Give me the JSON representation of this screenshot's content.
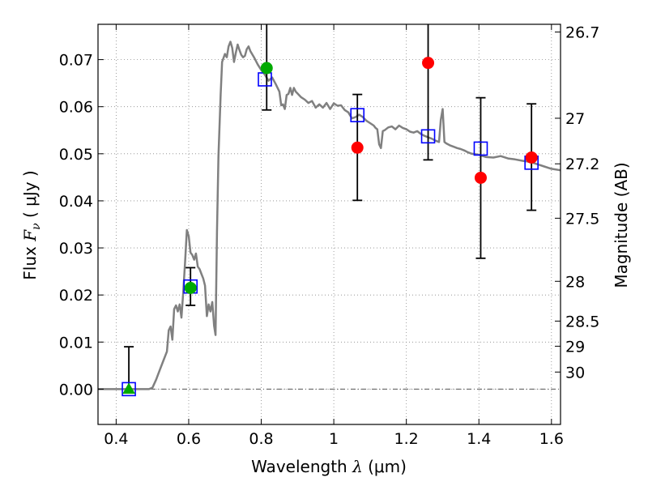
{
  "chart_data": {
    "type": "scatter",
    "xlabel": {
      "prefix": "Wavelength ",
      "symbol": "λ",
      "unit": " (μm)"
    },
    "ylabel": {
      "prefix": "Flux ",
      "symbol": "F",
      "subscript": "ν",
      "unit": " ( μJy )"
    },
    "y2label": "Magnitude (AB)",
    "xlim": [
      0.35,
      1.625
    ],
    "ylim": [
      -0.0075,
      0.0775
    ],
    "xticks": [
      0.4,
      0.6,
      0.8,
      1.0,
      1.2,
      1.4,
      1.6
    ],
    "xtick_labels": [
      "0.4",
      "0.6",
      "0.8",
      "1",
      "1.2",
      "1.4",
      "1.6"
    ],
    "yticks": [
      0.0,
      0.01,
      0.02,
      0.03,
      0.04,
      0.05,
      0.06,
      0.07
    ],
    "ytick_labels": [
      "0.00",
      "0.01",
      "0.02",
      "0.03",
      "0.04",
      "0.05",
      "0.06",
      "0.07"
    ],
    "mag_ticks": [
      26.7,
      27,
      27.2,
      27.5,
      28,
      28.5,
      29,
      30
    ],
    "mag_tick_labels": [
      "26.7",
      "27",
      "27.2",
      "27.5",
      "28",
      "28.5",
      "29",
      "30"
    ],
    "grid": true,
    "zero_line": true,
    "colors": {
      "sed_line": "#808080",
      "model_box": "#0000ff",
      "green_marker": "#00aa00",
      "red_marker": "#ff0000",
      "errorbar": "#000000",
      "grid": "#888888"
    },
    "sed_model": [
      [
        0.35,
        0.0
      ],
      [
        0.49,
        0.0
      ],
      [
        0.5,
        0.0003
      ],
      [
        0.51,
        0.002
      ],
      [
        0.52,
        0.004
      ],
      [
        0.53,
        0.006
      ],
      [
        0.54,
        0.008
      ],
      [
        0.545,
        0.0125
      ],
      [
        0.55,
        0.0133
      ],
      [
        0.555,
        0.0105
      ],
      [
        0.56,
        0.017
      ],
      [
        0.565,
        0.0178
      ],
      [
        0.57,
        0.0165
      ],
      [
        0.575,
        0.018
      ],
      [
        0.58,
        0.0152
      ],
      [
        0.585,
        0.0205
      ],
      [
        0.59,
        0.027
      ],
      [
        0.595,
        0.0338
      ],
      [
        0.6,
        0.0325
      ],
      [
        0.605,
        0.029
      ],
      [
        0.61,
        0.0285
      ],
      [
        0.615,
        0.0275
      ],
      [
        0.62,
        0.0288
      ],
      [
        0.625,
        0.026
      ],
      [
        0.63,
        0.0255
      ],
      [
        0.635,
        0.0245
      ],
      [
        0.64,
        0.0235
      ],
      [
        0.645,
        0.022
      ],
      [
        0.65,
        0.0155
      ],
      [
        0.655,
        0.018
      ],
      [
        0.66,
        0.0165
      ],
      [
        0.665,
        0.0185
      ],
      [
        0.67,
        0.0135
      ],
      [
        0.674,
        0.0115
      ],
      [
        0.678,
        0.0335
      ],
      [
        0.682,
        0.0495
      ],
      [
        0.688,
        0.0625
      ],
      [
        0.692,
        0.0695
      ],
      [
        0.7,
        0.0712
      ],
      [
        0.705,
        0.0705
      ],
      [
        0.71,
        0.0728
      ],
      [
        0.715,
        0.0738
      ],
      [
        0.72,
        0.0725
      ],
      [
        0.725,
        0.0695
      ],
      [
        0.73,
        0.0715
      ],
      [
        0.735,
        0.0732
      ],
      [
        0.74,
        0.072
      ],
      [
        0.745,
        0.071
      ],
      [
        0.75,
        0.0705
      ],
      [
        0.755,
        0.0708
      ],
      [
        0.76,
        0.0722
      ],
      [
        0.765,
        0.0728
      ],
      [
        0.77,
        0.0718
      ],
      [
        0.78,
        0.0705
      ],
      [
        0.79,
        0.069
      ],
      [
        0.8,
        0.0678
      ],
      [
        0.81,
        0.0668
      ],
      [
        0.82,
        0.0655
      ],
      [
        0.83,
        0.0662
      ],
      [
        0.84,
        0.0648
      ],
      [
        0.85,
        0.0632
      ],
      [
        0.855,
        0.0603
      ],
      [
        0.86,
        0.0605
      ],
      [
        0.865,
        0.0595
      ],
      [
        0.87,
        0.0625
      ],
      [
        0.875,
        0.0627
      ],
      [
        0.88,
        0.064
      ],
      [
        0.885,
        0.0625
      ],
      [
        0.89,
        0.064
      ],
      [
        0.895,
        0.0632
      ],
      [
        0.9,
        0.0628
      ],
      [
        0.91,
        0.062
      ],
      [
        0.92,
        0.0615
      ],
      [
        0.93,
        0.0608
      ],
      [
        0.94,
        0.0612
      ],
      [
        0.95,
        0.0598
      ],
      [
        0.96,
        0.0605
      ],
      [
        0.97,
        0.0598
      ],
      [
        0.98,
        0.0608
      ],
      [
        0.99,
        0.0595
      ],
      [
        1.0,
        0.0607
      ],
      [
        1.01,
        0.0602
      ],
      [
        1.02,
        0.0603
      ],
      [
        1.03,
        0.0593
      ],
      [
        1.04,
        0.0588
      ],
      [
        1.05,
        0.0575
      ],
      [
        1.06,
        0.0578
      ],
      [
        1.07,
        0.0583
      ],
      [
        1.08,
        0.0578
      ],
      [
        1.09,
        0.057
      ],
      [
        1.1,
        0.0565
      ],
      [
        1.11,
        0.056
      ],
      [
        1.115,
        0.0555
      ],
      [
        1.12,
        0.0552
      ],
      [
        1.125,
        0.052
      ],
      [
        1.13,
        0.0512
      ],
      [
        1.135,
        0.0548
      ],
      [
        1.14,
        0.055
      ],
      [
        1.15,
        0.0556
      ],
      [
        1.16,
        0.0558
      ],
      [
        1.17,
        0.0552
      ],
      [
        1.18,
        0.056
      ],
      [
        1.19,
        0.0555
      ],
      [
        1.2,
        0.0552
      ],
      [
        1.21,
        0.0547
      ],
      [
        1.22,
        0.0545
      ],
      [
        1.23,
        0.0548
      ],
      [
        1.24,
        0.0542
      ],
      [
        1.25,
        0.0538
      ],
      [
        1.26,
        0.0535
      ],
      [
        1.27,
        0.0532
      ],
      [
        1.28,
        0.0528
      ],
      [
        1.29,
        0.0525
      ],
      [
        1.295,
        0.0572
      ],
      [
        1.3,
        0.0595
      ],
      [
        1.305,
        0.0525
      ],
      [
        1.31,
        0.0522
      ],
      [
        1.32,
        0.0518
      ],
      [
        1.33,
        0.0515
      ],
      [
        1.34,
        0.0512
      ],
      [
        1.35,
        0.051
      ],
      [
        1.36,
        0.0507
      ],
      [
        1.37,
        0.0503
      ],
      [
        1.38,
        0.05
      ],
      [
        1.4,
        0.0498
      ],
      [
        1.42,
        0.0493
      ],
      [
        1.44,
        0.0492
      ],
      [
        1.46,
        0.0495
      ],
      [
        1.48,
        0.049
      ],
      [
        1.5,
        0.0488
      ],
      [
        1.52,
        0.0485
      ],
      [
        1.54,
        0.0483
      ],
      [
        1.56,
        0.0478
      ],
      [
        1.58,
        0.0473
      ],
      [
        1.6,
        0.0468
      ],
      [
        1.625,
        0.0465
      ]
    ],
    "model_boxes": [
      {
        "x": 0.435,
        "y": 0.0
      },
      {
        "x": 0.605,
        "y": 0.0218
      },
      {
        "x": 0.81,
        "y": 0.0658
      },
      {
        "x": 1.065,
        "y": 0.0582
      },
      {
        "x": 1.26,
        "y": 0.0537
      },
      {
        "x": 1.405,
        "y": 0.0511
      },
      {
        "x": 1.545,
        "y": 0.0481
      }
    ],
    "observations": [
      {
        "x": 0.435,
        "y": 0.0,
        "marker": "triangle",
        "color": "green_marker",
        "yerr_lo": null,
        "yerr_hi": 0.009
      },
      {
        "x": 0.605,
        "y": 0.0215,
        "marker": "circle",
        "color": "green_marker",
        "yerr_lo": 0.0178,
        "yerr_hi": 0.0258
      },
      {
        "x": 0.815,
        "y": 0.0682,
        "marker": "circle",
        "color": "green_marker",
        "yerr_lo": 0.0593,
        "yerr_hi": 0.0775
      },
      {
        "x": 1.065,
        "y": 0.0513,
        "marker": "circle",
        "color": "red_marker",
        "yerr_lo": 0.0401,
        "yerr_hi": 0.0626
      },
      {
        "x": 1.26,
        "y": 0.0693,
        "marker": "circle",
        "color": "red_marker",
        "yerr_lo": 0.0487,
        "yerr_hi": 0.0775
      },
      {
        "x": 1.405,
        "y": 0.0449,
        "marker": "circle",
        "color": "red_marker",
        "yerr_lo": 0.0278,
        "yerr_hi": 0.0619
      },
      {
        "x": 1.545,
        "y": 0.0492,
        "marker": "circle",
        "color": "red_marker",
        "yerr_lo": 0.038,
        "yerr_hi": 0.0606
      }
    ]
  }
}
